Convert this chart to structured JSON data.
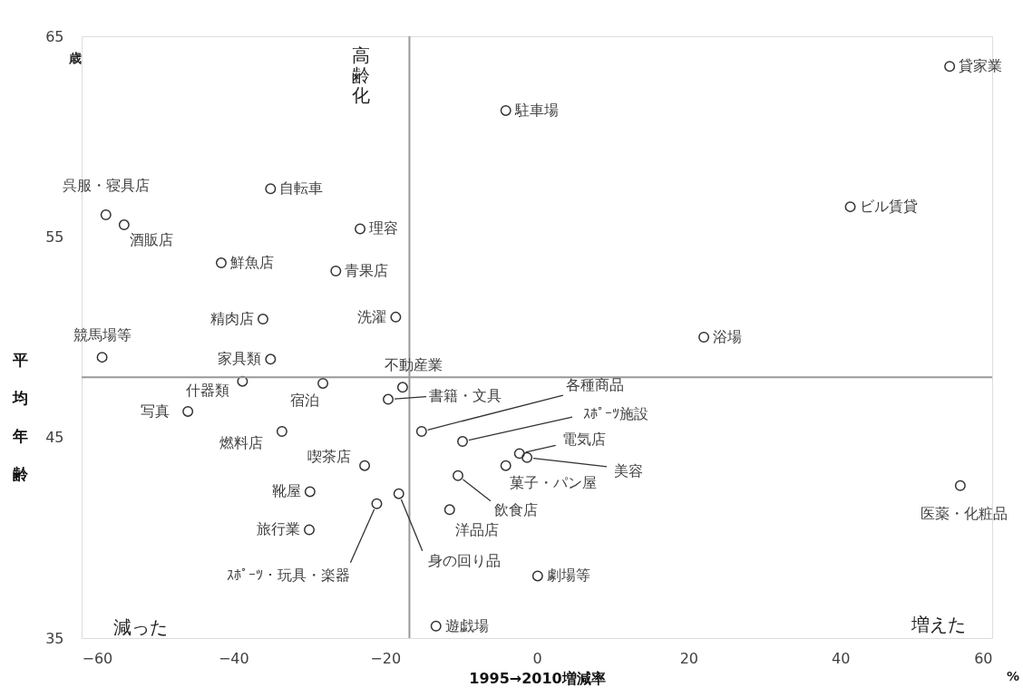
{
  "chart_data": {
    "type": "scatter",
    "xlabel": "1995→2010増減率",
    "ylabel": "平均年齢",
    "xlim": [
      -60,
      60
    ],
    "xticks": [
      -60,
      -40,
      -20,
      0,
      20,
      40,
      60
    ],
    "ylim": [
      35,
      65
    ],
    "yticks": [
      35,
      45,
      55,
      65
    ],
    "grid": false,
    "legend": false,
    "marker": "circle",
    "ref_lines": [
      {
        "axis": "x",
        "value": -16.8,
        "label": null,
        "color": "#999999"
      },
      {
        "axis": "y",
        "value": 48.0,
        "label": null,
        "color": "#999999"
      }
    ],
    "series": [
      {
        "color": "#333333",
        "x": [
          54.4,
          -4.1,
          -56.8,
          -54.4,
          -35.1,
          -23.3,
          41.3,
          -41.6,
          -26.5,
          -36.1,
          -18.6,
          22.0,
          -57.3,
          -35.1,
          -38.8,
          -28.2,
          -17.7,
          -19.6,
          -46.0,
          -15.2,
          -9.8,
          -33.6,
          -2.3,
          -1.3,
          -4.1,
          -22.7,
          -10.4,
          -29.9,
          -18.2,
          -21.1,
          -11.5,
          -30.0,
          0.1,
          -13.3,
          55.8
        ],
        "values": [
          63.5,
          61.3,
          56.1,
          55.6,
          57.4,
          55.4,
          56.5,
          53.7,
          53.3,
          50.9,
          51.0,
          50.0,
          49.0,
          48.9,
          47.8,
          47.7,
          47.5,
          46.9,
          46.3,
          45.3,
          44.8,
          45.3,
          44.2,
          44.0,
          43.6,
          43.6,
          43.1,
          42.3,
          42.2,
          41.7,
          41.4,
          40.4,
          38.1,
          35.6,
          42.6
        ]
      }
    ],
    "annotations": [
      "歳",
      "%",
      "高齢化",
      "減った",
      "増えた",
      {
        "text": "貸家業",
        "x": 54.4,
        "y": 63.5
      },
      {
        "text": "駐車場",
        "x": -4.1,
        "y": 61.3
      },
      {
        "text": "呉服・寝具店",
        "x": -56.8,
        "y": 56.1
      },
      {
        "text": "酒販店",
        "x": -54.4,
        "y": 55.6
      },
      {
        "text": "自転車",
        "x": -35.1,
        "y": 57.4
      },
      {
        "text": "理容",
        "x": -23.3,
        "y": 55.4
      },
      {
        "text": "ビル賃貸",
        "x": 41.3,
        "y": 56.5
      },
      {
        "text": "鮮魚店",
        "x": -41.6,
        "y": 53.7
      },
      {
        "text": "青果店",
        "x": -26.5,
        "y": 53.3
      },
      {
        "text": "精肉店",
        "x": -36.1,
        "y": 50.9
      },
      {
        "text": "洗濯",
        "x": -18.6,
        "y": 51.0
      },
      {
        "text": "浴場",
        "x": 22.0,
        "y": 50.0
      },
      {
        "text": "競馬場等",
        "x": -57.3,
        "y": 49.0
      },
      {
        "text": "家具類",
        "x": -35.1,
        "y": 48.9
      },
      {
        "text": "什器類",
        "x": -38.8,
        "y": 47.8
      },
      {
        "text": "宿泊",
        "x": -28.2,
        "y": 47.7
      },
      {
        "text": "不動産業",
        "x": -17.7,
        "y": 47.5
      },
      {
        "text": "書籍・文具",
        "x": -19.6,
        "y": 46.9
      },
      {
        "text": "写真",
        "x": -46.0,
        "y": 46.3
      },
      {
        "text": "各種商品",
        "x": -15.2,
        "y": 45.3
      },
      {
        "text": "ｽﾎﾟｰﾂ施設",
        "x": -9.8,
        "y": 44.8
      },
      {
        "text": "燃料店",
        "x": -33.6,
        "y": 45.3
      },
      {
        "text": "電気店",
        "x": -2.3,
        "y": 44.2
      },
      {
        "text": "美容",
        "x": -1.3,
        "y": 44.0
      },
      {
        "text": "菓子・パン屋",
        "x": -4.1,
        "y": 43.6
      },
      {
        "text": "喫茶店",
        "x": -22.7,
        "y": 43.6
      },
      {
        "text": "飲食店",
        "x": -10.4,
        "y": 43.1
      },
      {
        "text": "靴屋",
        "x": -29.9,
        "y": 42.3
      },
      {
        "text": "身の回り品",
        "x": -18.2,
        "y": 42.2
      },
      {
        "text": "ｽﾎﾟｰﾂ・玩具・楽器",
        "x": -21.1,
        "y": 41.7
      },
      {
        "text": "洋品店",
        "x": -11.5,
        "y": 41.4
      },
      {
        "text": "旅行業",
        "x": -30.0,
        "y": 40.4
      },
      {
        "text": "劇場等",
        "x": 0.1,
        "y": 38.1
      },
      {
        "text": "遊戯場",
        "x": -13.3,
        "y": 35.6
      },
      {
        "text": "医薬・化粧品",
        "x": 55.8,
        "y": 42.6
      }
    ]
  }
}
